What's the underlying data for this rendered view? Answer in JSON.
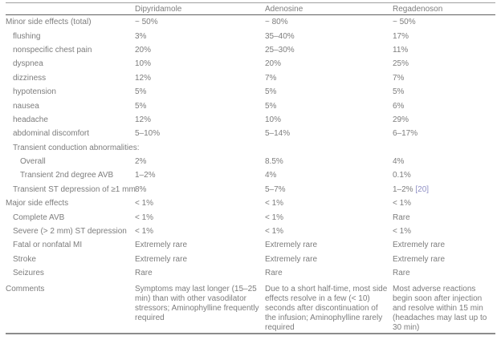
{
  "table": {
    "columns": [
      "",
      "Dipyridamole",
      "Adenosine",
      "Regadenoson"
    ],
    "rows": [
      {
        "label": "Minor side effects (total)",
        "indent": 0,
        "values": [
          "~ 50%",
          "~ 80%",
          "~ 50%"
        ]
      },
      {
        "label": "flushing",
        "indent": 1,
        "values": [
          "3%",
          "35–40%",
          "17%"
        ]
      },
      {
        "label": "nonspecific chest pain",
        "indent": 1,
        "values": [
          "20%",
          "25–30%",
          "11%"
        ]
      },
      {
        "label": "dyspnea",
        "indent": 1,
        "values": [
          "10%",
          "20%",
          "25%"
        ]
      },
      {
        "label": "dizziness",
        "indent": 1,
        "values": [
          "12%",
          "7%",
          "7%"
        ]
      },
      {
        "label": "hypotension",
        "indent": 1,
        "values": [
          "5%",
          "5%",
          "5%"
        ]
      },
      {
        "label": "nausea",
        "indent": 1,
        "values": [
          "5%",
          "5%",
          "6%"
        ]
      },
      {
        "label": "headache",
        "indent": 1,
        "values": [
          "12%",
          "10%",
          "29%"
        ]
      },
      {
        "label": "abdominal discomfort",
        "indent": 1,
        "values": [
          "5–10%",
          "5–14%",
          "6–17%"
        ]
      },
      {
        "label": "Transient conduction abnormalities:",
        "indent": 1,
        "values": [
          "",
          "",
          ""
        ]
      },
      {
        "label": "Overall",
        "indent": 2,
        "values": [
          "2%",
          "8.5%",
          "4%"
        ]
      },
      {
        "label": "Transient 2nd degree AVB",
        "indent": 2,
        "values": [
          "1–2%",
          "4%",
          "0.1%"
        ]
      },
      {
        "label": "Transient ST depression of ≥1 mm",
        "indent": 1,
        "values": [
          "8%",
          "5–7%",
          {
            "text": "1–2% ",
            "link": "[20]"
          }
        ]
      },
      {
        "label": "Major side effects",
        "indent": 0,
        "values": [
          "< 1%",
          "< 1%",
          "< 1%"
        ]
      },
      {
        "label": "Complete AVB",
        "indent": 1,
        "values": [
          "< 1%",
          "< 1%",
          "Rare"
        ]
      },
      {
        "label": "Severe (> 2 mm) ST depression",
        "indent": 1,
        "values": [
          "< 1%",
          "< 1%",
          "< 1%"
        ]
      },
      {
        "label": "Fatal or nonfatal MI",
        "indent": 1,
        "values": [
          "Extremely rare",
          "Extremely rare",
          "Extremely rare"
        ]
      },
      {
        "label": "Stroke",
        "indent": 1,
        "values": [
          "Extremely rare",
          "Extremely rare",
          "Extremely rare"
        ]
      },
      {
        "label": "Seizures",
        "indent": 1,
        "values": [
          "Rare",
          "Rare",
          "Rare"
        ]
      },
      {
        "label": "Comments",
        "indent": 0,
        "multiline": true,
        "values": [
          "Symptoms may last longer (15–25 min) than with other vasodilator stressors; Aminophylline frequently required",
          "Due to a short half-time, most side effects resolve in a few (< 10) seconds after discontinuation of the infusion; Aminophylline rarely required",
          "Most adverse reactions begin soon after injection and resolve within 15 min (headaches may last up to 30 min)"
        ]
      }
    ],
    "colors": {
      "text": "#7d7d7d",
      "citation": "#8f8fc5",
      "top_rule": "#a0a0a0",
      "header_rule": "#5f5f5f",
      "bottom_rule": "#8c8c8c"
    }
  }
}
